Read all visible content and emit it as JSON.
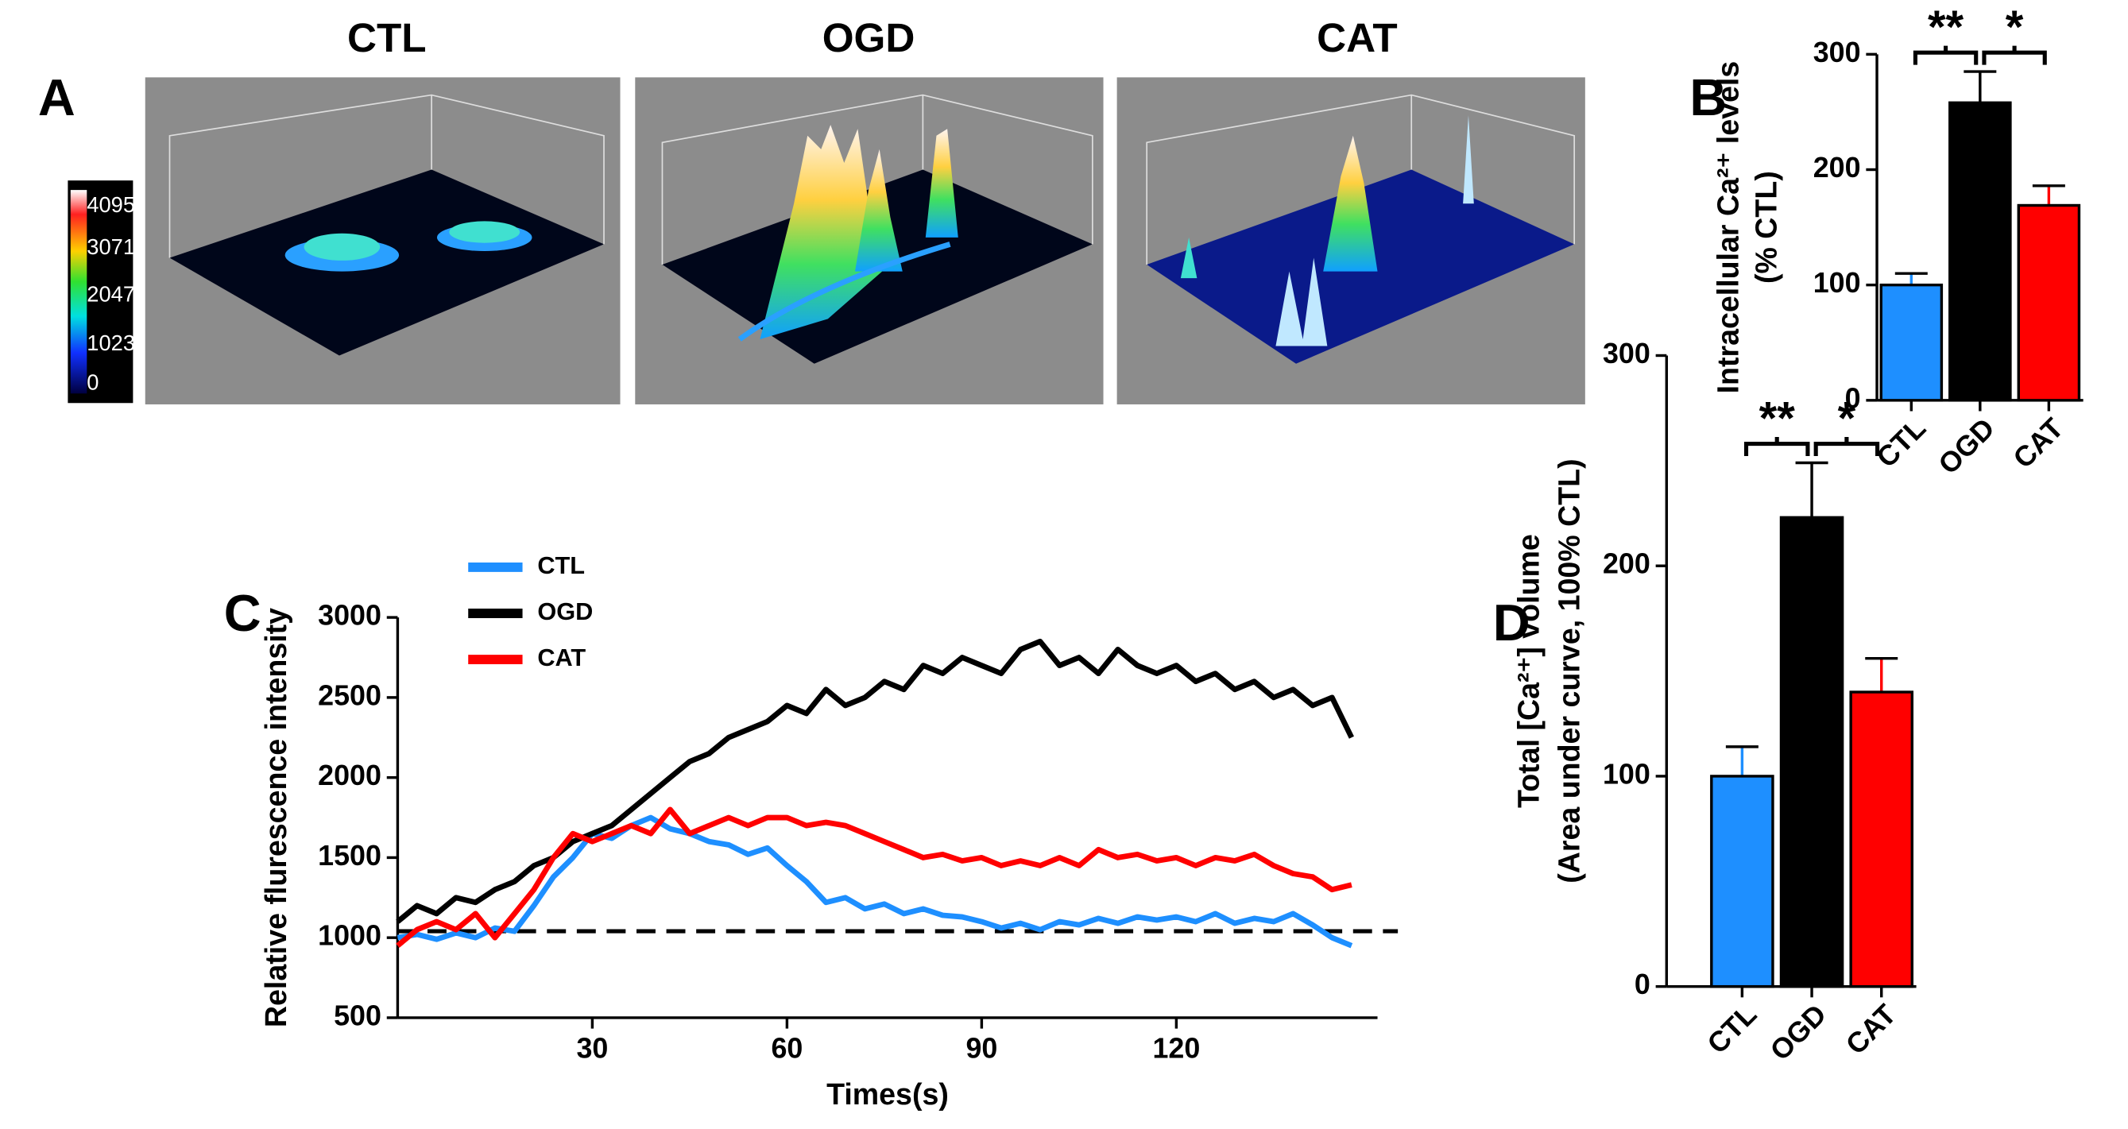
{
  "panel_a": {
    "label": "A",
    "titles": [
      "CTL",
      "OGD",
      "CAT"
    ],
    "colorbar_ticks": [
      4095,
      3071,
      2047,
      1023,
      0
    ]
  },
  "chart_data": [
    {
      "type": "bar",
      "panel_label": "B",
      "categories": [
        "CTL",
        "OGD",
        "CAT"
      ],
      "values": [
        100,
        258,
        169
      ],
      "errors": [
        10,
        27,
        17
      ],
      "colors": [
        "#1e8fff",
        "#000000",
        "#ff0000"
      ],
      "ylabel": [
        "Intracellular Ca²⁺ levels",
        "(% CTL)"
      ],
      "ylim": [
        0,
        300
      ],
      "yticks": [
        0,
        100,
        200,
        300
      ],
      "annotations": [
        "**",
        "*"
      ]
    },
    {
      "type": "line",
      "panel_label": "C",
      "xlabel": "Times(s)",
      "ylabel": "Relative flurescence  intensity",
      "x": [
        0,
        3,
        6,
        9,
        12,
        15,
        18,
        21,
        24,
        27,
        30,
        33,
        36,
        39,
        42,
        45,
        48,
        51,
        54,
        57,
        60,
        63,
        66,
        69,
        72,
        75,
        78,
        81,
        84,
        87,
        90,
        93,
        96,
        99,
        102,
        105,
        108,
        111,
        114,
        117,
        120,
        123,
        126,
        129,
        132,
        135,
        138,
        141,
        144,
        147
      ],
      "series": [
        {
          "name": "CTL",
          "color": "#1e8fff",
          "values": [
            1000,
            1020,
            990,
            1030,
            1000,
            1060,
            1040,
            1200,
            1380,
            1500,
            1650,
            1620,
            1700,
            1750,
            1680,
            1650,
            1600,
            1580,
            1520,
            1560,
            1450,
            1350,
            1220,
            1250,
            1180,
            1210,
            1150,
            1180,
            1140,
            1130,
            1100,
            1060,
            1090,
            1050,
            1100,
            1080,
            1120,
            1090,
            1130,
            1110,
            1130,
            1100,
            1150,
            1090,
            1120,
            1100,
            1150,
            1080,
            1000,
            950
          ]
        },
        {
          "name": "OGD",
          "color": "#000000",
          "values": [
            1100,
            1200,
            1150,
            1250,
            1220,
            1300,
            1350,
            1450,
            1500,
            1600,
            1650,
            1700,
            1800,
            1900,
            2000,
            2100,
            2150,
            2250,
            2300,
            2350,
            2450,
            2400,
            2550,
            2450,
            2500,
            2600,
            2550,
            2700,
            2650,
            2750,
            2700,
            2650,
            2800,
            2850,
            2700,
            2750,
            2650,
            2800,
            2700,
            2650,
            2700,
            2600,
            2650,
            2550,
            2600,
            2500,
            2550,
            2450,
            2500,
            2250
          ]
        },
        {
          "name": "CAT",
          "color": "#ff0000",
          "values": [
            950,
            1050,
            1100,
            1050,
            1150,
            1000,
            1150,
            1300,
            1500,
            1650,
            1600,
            1650,
            1700,
            1650,
            1800,
            1650,
            1700,
            1750,
            1700,
            1750,
            1750,
            1700,
            1720,
            1700,
            1650,
            1600,
            1550,
            1500,
            1520,
            1480,
            1500,
            1450,
            1480,
            1450,
            1500,
            1450,
            1550,
            1500,
            1520,
            1480,
            1500,
            1450,
            1500,
            1480,
            1520,
            1450,
            1400,
            1380,
            1300,
            1330
          ]
        }
      ],
      "reference_line": 1040,
      "xlim": [
        0,
        151
      ],
      "xticks": [
        30,
        60,
        90,
        120
      ],
      "ylim": [
        500,
        3000
      ],
      "yticks": [
        500,
        1000,
        1500,
        2000,
        2500,
        3000
      ]
    },
    {
      "type": "bar",
      "panel_label": "D",
      "categories": [
        "CTL",
        "OGD",
        "CAT"
      ],
      "values": [
        100,
        223,
        140
      ],
      "errors": [
        14,
        26,
        16
      ],
      "colors": [
        "#1e8fff",
        "#000000",
        "#ff0000"
      ],
      "ylabel": [
        "Total [Ca²⁺] volume",
        "(Area under curve, 100% CTL)"
      ],
      "ylim": [
        0,
        300
      ],
      "yticks": [
        0,
        100,
        200,
        300
      ],
      "annotations": [
        "**",
        "*"
      ]
    }
  ]
}
